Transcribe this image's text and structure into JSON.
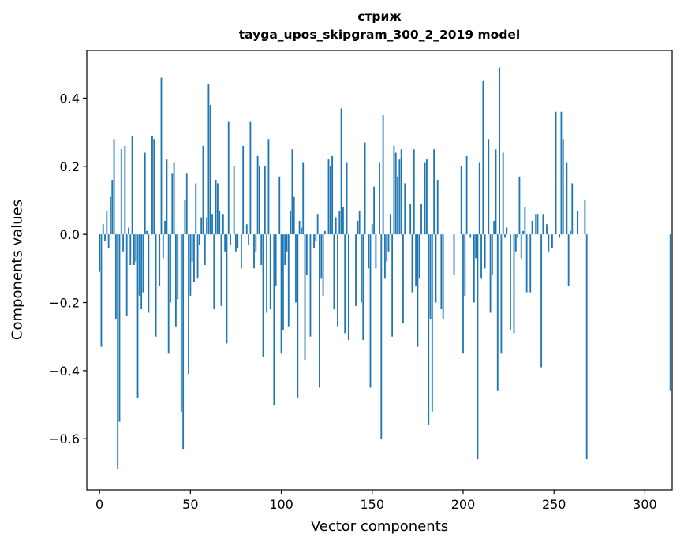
{
  "chart_data": {
    "type": "bar",
    "title": "стриж",
    "subtitle": "tayga_upos_skipgram_300_2_2019 model",
    "xlabel": "Vector components",
    "ylabel": "Components values",
    "xlim": [
      -7,
      315
    ],
    "ylim": [
      -0.75,
      0.54
    ],
    "xticks": [
      0,
      50,
      100,
      150,
      200,
      250,
      300
    ],
    "xtick_labels": [
      "0",
      "50",
      "100",
      "150",
      "200",
      "250",
      "300"
    ],
    "yticks": [
      -0.6,
      -0.4,
      -0.2,
      0.0,
      0.2,
      0.4
    ],
    "ytick_labels": [
      "−0.6",
      "−0.4",
      "−0.2",
      "0.0",
      "0.2",
      "0.4"
    ],
    "bar_color": "#1f77b4",
    "series": [
      {
        "name": "стриж",
        "values": [
          -0.11,
          -0.33,
          0.03,
          -0.02,
          0.07,
          -0.04,
          0.11,
          0.16,
          0.28,
          -0.25,
          -0.69,
          -0.55,
          0.25,
          -0.05,
          0.26,
          -0.24,
          0.02,
          -0.09,
          0.29,
          -0.09,
          -0.08,
          -0.48,
          -0.18,
          -0.22,
          -0.17,
          0.24,
          0.01,
          -0.23,
          0.0,
          0.29,
          0.28,
          -0.3,
          0.0,
          -0.15,
          0.46,
          -0.07,
          0.04,
          0.22,
          -0.35,
          -0.2,
          0.18,
          0.21,
          -0.27,
          -0.19,
          0.0,
          -0.52,
          -0.63,
          0.1,
          0.18,
          -0.41,
          -0.18,
          -0.08,
          -0.14,
          0.15,
          -0.13,
          -0.03,
          0.05,
          0.26,
          -0.09,
          0.05,
          0.44,
          0.38,
          0.06,
          -0.22,
          0.16,
          0.15,
          0.07,
          -0.21,
          0.06,
          -0.05,
          -0.32,
          0.33,
          -0.03,
          0.0,
          0.2,
          -0.05,
          -0.04,
          0.0,
          -0.1,
          0.26,
          0.0,
          0.03,
          -0.03,
          0.33,
          0.0,
          -0.1,
          -0.05,
          0.23,
          0.2,
          -0.09,
          -0.36,
          0.2,
          -0.23,
          0.28,
          -0.22,
          0.0,
          -0.5,
          -0.15,
          0.0,
          0.17,
          -0.35,
          -0.28,
          -0.09,
          -0.05,
          -0.27,
          0.07,
          0.25,
          0.11,
          -0.2,
          -0.48,
          0.04,
          0.02,
          0.21,
          -0.37,
          -0.12,
          0.0,
          -0.3,
          0.0,
          -0.04,
          -0.02,
          0.06,
          -0.45,
          -0.13,
          -0.18,
          0.01,
          0.0,
          0.22,
          0.2,
          0.23,
          -0.22,
          0.05,
          -0.27,
          0.07,
          0.37,
          0.08,
          -0.29,
          0.21,
          -0.31,
          0.0,
          0.0,
          0.0,
          -0.21,
          0.04,
          0.07,
          -0.2,
          -0.31,
          0.27,
          0.0,
          -0.1,
          -0.45,
          0.03,
          0.14,
          -0.1,
          0.0,
          0.21,
          -0.6,
          0.35,
          -0.13,
          -0.08,
          -0.05,
          0.06,
          -0.3,
          0.26,
          0.24,
          0.17,
          0.22,
          0.25,
          -0.26,
          0.15,
          0.0,
          0.0,
          0.09,
          -0.17,
          0.25,
          -0.15,
          -0.33,
          -0.13,
          0.09,
          0.0,
          0.21,
          0.22,
          -0.56,
          -0.25,
          -0.52,
          0.25,
          -0.2,
          0.16,
          0.0,
          -0.22,
          -0.25,
          0.0,
          0.0,
          0.0,
          0.0,
          0.0,
          -0.12,
          0.0,
          0.0,
          0.0,
          0.2,
          -0.35,
          -0.18,
          0.23,
          0.0,
          -0.01,
          0.0,
          -0.2,
          -0.07,
          -0.66,
          0.21,
          -0.13,
          0.45,
          -0.1,
          0.0,
          0.28,
          -0.23,
          -0.12,
          0.04,
          0.25,
          -0.46,
          0.49,
          -0.35,
          0.24,
          -0.01,
          0.02,
          0.0,
          -0.28,
          0.0,
          -0.29,
          -0.05,
          -0.01,
          0.17,
          -0.07,
          0.01,
          0.08,
          -0.17,
          0.0,
          -0.17,
          0.04,
          0.0,
          0.06,
          0.06,
          0.0,
          -0.39,
          0.06,
          0.0,
          0.03,
          -0.05,
          0.0,
          -0.04,
          0.0,
          0.36,
          0.0,
          -0.01,
          0.36,
          0.28,
          0.0,
          0.21,
          -0.15,
          0.01,
          0.15,
          0.0,
          0.0,
          0.07,
          0.0,
          0.0,
          0.0,
          0.1,
          -0.66,
          0.0,
          0.0,
          0.0,
          0.0,
          0.0,
          0.0,
          0.0,
          0.0,
          0.0,
          0.0,
          0.0,
          0.0,
          0.0,
          0.0,
          0.0,
          0.0,
          0.0,
          0.0,
          0.0,
          0.0,
          0.0,
          0.0,
          0.0,
          0.0,
          0.0,
          0.0,
          0.0,
          0.0,
          0.0,
          0.0,
          0.0,
          0.0,
          0.0,
          0.0,
          0.0,
          0.0,
          0.0,
          0.0,
          0.0,
          0.0,
          0.0,
          0.0,
          0.0,
          0.0,
          0.0,
          -0.46
        ]
      }
    ]
  }
}
